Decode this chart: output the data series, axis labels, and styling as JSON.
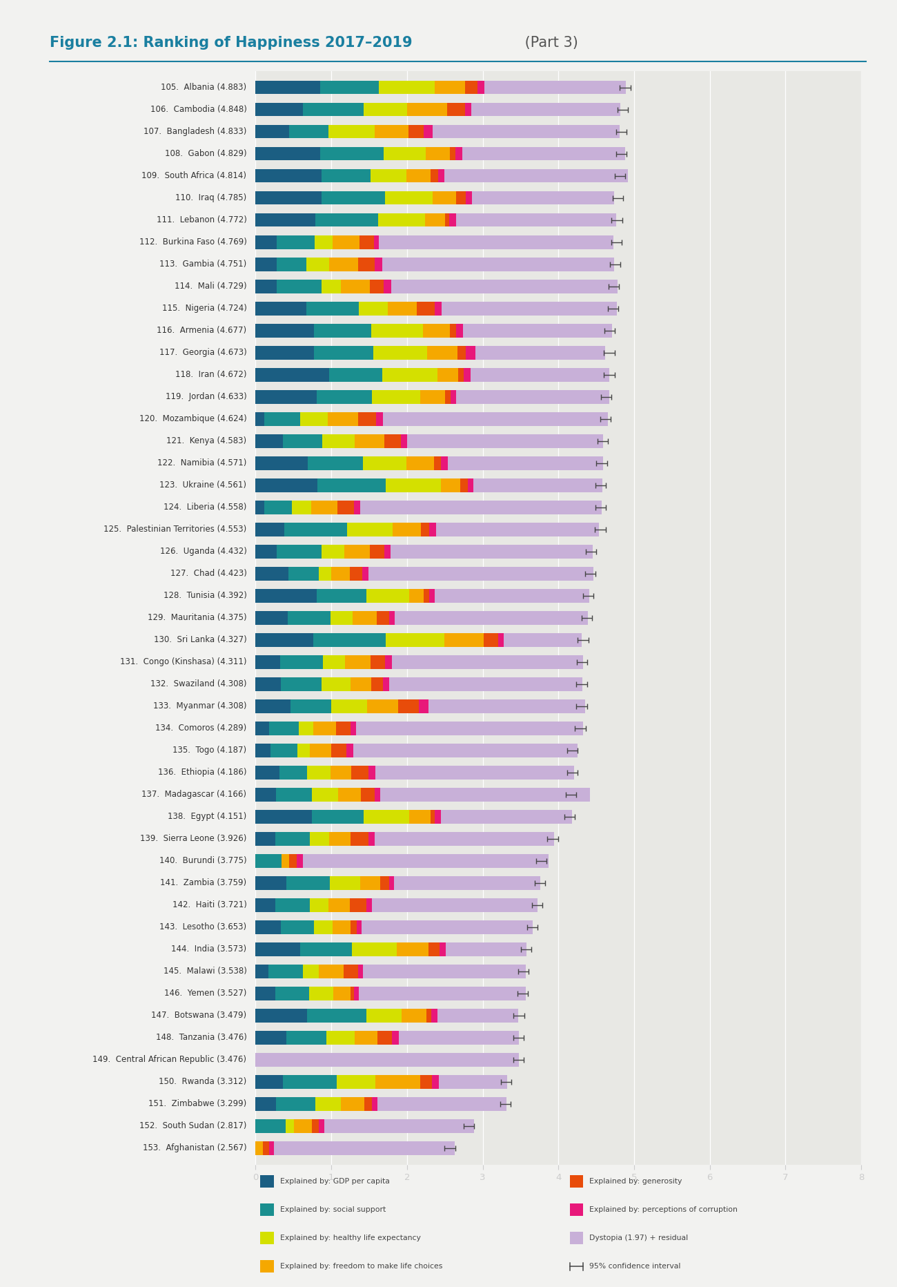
{
  "title_bold": "Figure 2.1: Ranking of Happiness 2017–2019",
  "title_normal": " (Part 3)",
  "title_color": "#1a7fa0",
  "title_normal_color": "#555555",
  "bg_color": "#f2f2f0",
  "bar_area_bg": "#e8e8e4",
  "countries": [
    "105.  Albania (4.883)",
    "106.  Cambodia (4.848)",
    "107.  Bangladesh (4.833)",
    "108.  Gabon (4.829)",
    "109.  South Africa (4.814)",
    "110.  Iraq (4.785)",
    "111.  Lebanon (4.772)",
    "112.  Burkina Faso (4.769)",
    "113.  Gambia (4.751)",
    "114.  Mali (4.729)",
    "115.  Nigeria (4.724)",
    "116.  Armenia (4.677)",
    "117.  Georgia (4.673)",
    "118.  Iran (4.672)",
    "119.  Jordan (4.633)",
    "120.  Mozambique (4.624)",
    "121.  Kenya (4.583)",
    "122.  Namibia (4.571)",
    "123.  Ukraine (4.561)",
    "124.  Liberia (4.558)",
    "125.  Palestinian Territories (4.553)",
    "126.  Uganda (4.432)",
    "127.  Chad (4.423)",
    "128.  Tunisia (4.392)",
    "129.  Mauritania (4.375)",
    "130.  Sri Lanka (4.327)",
    "131.  Congo (Kinshasa) (4.311)",
    "132.  Swaziland (4.308)",
    "133.  Myanmar (4.308)",
    "134.  Comoros (4.289)",
    "135.  Togo (4.187)",
    "136.  Ethiopia (4.186)",
    "137.  Madagascar (4.166)",
    "138.  Egypt (4.151)",
    "139.  Sierra Leone (3.926)",
    "140.  Burundi (3.775)",
    "141.  Zambia (3.759)",
    "142.  Haiti (3.721)",
    "143.  Lesotho (3.653)",
    "144.  India (3.573)",
    "145.  Malawi (3.538)",
    "146.  Yemen (3.527)",
    "147.  Botswana (3.479)",
    "148.  Tanzania (3.476)",
    "149.  Central African Republic (3.476)",
    "150.  Rwanda (3.312)",
    "151.  Zimbabwe (3.299)",
    "152.  South Sudan (2.817)",
    "153.  Afghanistan (2.567)"
  ],
  "scores": [
    4.883,
    4.848,
    4.833,
    4.829,
    4.814,
    4.785,
    4.772,
    4.769,
    4.751,
    4.729,
    4.724,
    4.677,
    4.673,
    4.672,
    4.633,
    4.624,
    4.583,
    4.571,
    4.561,
    4.558,
    4.553,
    4.432,
    4.423,
    4.392,
    4.375,
    4.327,
    4.311,
    4.308,
    4.308,
    4.289,
    4.187,
    4.186,
    4.166,
    4.151,
    3.926,
    3.775,
    3.759,
    3.721,
    3.653,
    3.573,
    3.538,
    3.527,
    3.479,
    3.476,
    3.476,
    3.312,
    3.299,
    2.817,
    2.567
  ],
  "gdp": [
    0.85,
    0.62,
    0.44,
    0.85,
    0.87,
    0.87,
    0.79,
    0.28,
    0.28,
    0.28,
    0.67,
    0.77,
    0.77,
    0.97,
    0.81,
    0.11,
    0.36,
    0.69,
    0.82,
    0.11,
    0.38,
    0.28,
    0.43,
    0.81,
    0.42,
    0.76,
    0.32,
    0.33,
    0.46,
    0.18,
    0.2,
    0.31,
    0.27,
    0.74,
    0.26,
    0.0,
    0.41,
    0.26,
    0.33,
    0.59,
    0.17,
    0.26,
    0.68,
    0.41,
    0.0,
    0.36,
    0.27,
    0.0,
    0.0
  ],
  "social": [
    0.78,
    0.81,
    0.52,
    0.84,
    0.65,
    0.84,
    0.83,
    0.5,
    0.39,
    0.59,
    0.69,
    0.76,
    0.78,
    0.7,
    0.73,
    0.48,
    0.52,
    0.73,
    0.9,
    0.37,
    0.83,
    0.59,
    0.4,
    0.65,
    0.57,
    0.96,
    0.57,
    0.54,
    0.54,
    0.39,
    0.35,
    0.37,
    0.47,
    0.69,
    0.46,
    0.34,
    0.57,
    0.46,
    0.44,
    0.68,
    0.45,
    0.45,
    0.78,
    0.52,
    0.0,
    0.71,
    0.52,
    0.4,
    0.0
  ],
  "health": [
    0.74,
    0.57,
    0.61,
    0.56,
    0.47,
    0.63,
    0.62,
    0.24,
    0.3,
    0.26,
    0.39,
    0.68,
    0.72,
    0.73,
    0.63,
    0.36,
    0.43,
    0.57,
    0.73,
    0.25,
    0.6,
    0.3,
    0.17,
    0.57,
    0.29,
    0.77,
    0.29,
    0.38,
    0.47,
    0.19,
    0.17,
    0.31,
    0.35,
    0.6,
    0.25,
    0.0,
    0.4,
    0.24,
    0.25,
    0.59,
    0.21,
    0.32,
    0.47,
    0.38,
    0.0,
    0.51,
    0.34,
    0.11,
    0.0
  ],
  "freedom": [
    0.4,
    0.53,
    0.45,
    0.32,
    0.32,
    0.31,
    0.26,
    0.35,
    0.38,
    0.38,
    0.38,
    0.36,
    0.4,
    0.28,
    0.33,
    0.4,
    0.39,
    0.37,
    0.25,
    0.35,
    0.37,
    0.34,
    0.24,
    0.19,
    0.32,
    0.52,
    0.34,
    0.28,
    0.41,
    0.3,
    0.28,
    0.27,
    0.3,
    0.28,
    0.28,
    0.1,
    0.27,
    0.28,
    0.23,
    0.42,
    0.33,
    0.22,
    0.33,
    0.3,
    0.0,
    0.59,
    0.31,
    0.23,
    0.1
  ],
  "generosity": [
    0.16,
    0.24,
    0.2,
    0.07,
    0.1,
    0.13,
    0.06,
    0.19,
    0.22,
    0.18,
    0.24,
    0.08,
    0.11,
    0.07,
    0.08,
    0.24,
    0.22,
    0.09,
    0.1,
    0.22,
    0.11,
    0.19,
    0.17,
    0.07,
    0.16,
    0.19,
    0.19,
    0.15,
    0.28,
    0.19,
    0.2,
    0.23,
    0.18,
    0.06,
    0.24,
    0.1,
    0.11,
    0.22,
    0.09,
    0.15,
    0.19,
    0.05,
    0.06,
    0.19,
    0.0,
    0.16,
    0.1,
    0.09,
    0.08
  ],
  "corruption": [
    0.09,
    0.08,
    0.12,
    0.09,
    0.08,
    0.08,
    0.09,
    0.07,
    0.1,
    0.1,
    0.09,
    0.09,
    0.12,
    0.09,
    0.07,
    0.09,
    0.08,
    0.09,
    0.08,
    0.08,
    0.09,
    0.08,
    0.08,
    0.08,
    0.08,
    0.08,
    0.09,
    0.08,
    0.12,
    0.08,
    0.09,
    0.09,
    0.08,
    0.08,
    0.08,
    0.08,
    0.07,
    0.08,
    0.06,
    0.08,
    0.07,
    0.06,
    0.08,
    0.09,
    0.0,
    0.09,
    0.07,
    0.08,
    0.06
  ],
  "dystopia": [
    1.87,
    1.97,
    2.47,
    2.15,
    2.43,
    1.88,
    2.11,
    3.1,
    3.07,
    2.99,
    2.31,
    1.97,
    1.72,
    1.83,
    2.02,
    2.97,
    2.59,
    2.05,
    1.7,
    3.19,
    2.16,
    2.67,
    2.97,
    2.04,
    2.55,
    1.03,
    2.53,
    2.56,
    2.07,
    3.0,
    2.96,
    2.63,
    2.77,
    1.73,
    2.37,
    3.25,
    1.93,
    2.18,
    2.26,
    1.07,
    2.15,
    2.21,
    1.07,
    1.59,
    3.48,
    0.9,
    1.7,
    1.98,
    2.39
  ],
  "ci_err": 0.07,
  "colors": {
    "gdp": "#1b5e82",
    "social": "#1a8f8f",
    "health": "#d4e000",
    "freedom": "#f5a800",
    "generosity": "#e84c0a",
    "corruption": "#e8187a",
    "dystopia": "#c8b0d8"
  },
  "xlim": [
    0,
    8
  ],
  "xticks": [
    0,
    1,
    2,
    3,
    4,
    5,
    6,
    7,
    8
  ],
  "legend_items_left": [
    {
      "label": "Explained by: GDP per capita",
      "color": "#1b5e82"
    },
    {
      "label": "Explained by: social support",
      "color": "#1a8f8f"
    },
    {
      "label": "Explained by: healthy life expectancy",
      "color": "#d4e000"
    },
    {
      "label": "Explained by: freedom to make life choices",
      "color": "#f5a800"
    }
  ],
  "legend_items_right": [
    {
      "label": "Explained by: generosity",
      "color": "#e84c0a"
    },
    {
      "label": "Explained by: perceptions of corruption",
      "color": "#e8187a"
    },
    {
      "label": "Dystopia (1.97) + residual",
      "color": "#c8b0d8"
    }
  ]
}
